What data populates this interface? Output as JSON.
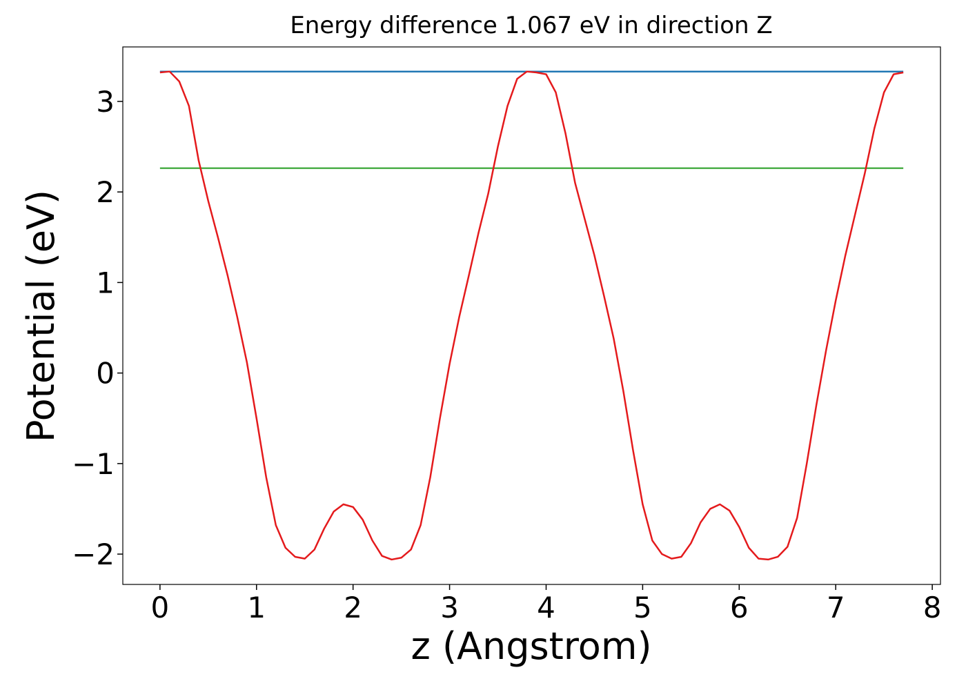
{
  "chart_data": {
    "type": "line",
    "title": "Energy difference 1.067 eV in direction Z",
    "xlabel": "z (Angstrom)",
    "ylabel": "Potential (eV)",
    "xlim": [
      -0.385,
      8.085
    ],
    "ylim": [
      -2.335,
      3.602
    ],
    "xticks": [
      0,
      1,
      2,
      3,
      4,
      5,
      6,
      7,
      8
    ],
    "yticks": [
      {
        "value": -2,
        "label": "−2"
      },
      {
        "value": -1,
        "label": "−1"
      },
      0,
      1,
      2,
      3
    ],
    "grid": false,
    "series": [
      {
        "color": "#1f77b4",
        "x": [
          0,
          7.7
        ],
        "values": [
          3.33,
          3.33
        ]
      },
      {
        "color": "#4daf4a",
        "x": [
          0,
          7.7
        ],
        "values": [
          2.263,
          2.263
        ]
      },
      {
        "color": "#e41a1c",
        "x": [
          0,
          0.1,
          0.2,
          0.3,
          0.4,
          0.5,
          0.6,
          0.7,
          0.8,
          0.9,
          1.0,
          1.1,
          1.2,
          1.3,
          1.4,
          1.5,
          1.6,
          1.7,
          1.8,
          1.9,
          2.0,
          2.1,
          2.2,
          2.3,
          2.4,
          2.5,
          2.6,
          2.7,
          2.8,
          2.9,
          3.0,
          3.1,
          3.2,
          3.3,
          3.4,
          3.5,
          3.6,
          3.7,
          3.8,
          3.9,
          4.0,
          4.1,
          4.2,
          4.3,
          4.4,
          4.5,
          4.6,
          4.7,
          4.8,
          4.9,
          5.0,
          5.1,
          5.2,
          5.3,
          5.4,
          5.5,
          5.6,
          5.7,
          5.8,
          5.9,
          6.0,
          6.1,
          6.2,
          6.3,
          6.4,
          6.5,
          6.6,
          6.7,
          6.8,
          6.9,
          7.0,
          7.1,
          7.2,
          7.3,
          7.4,
          7.5,
          7.6,
          7.7
        ],
        "values": [
          3.32,
          3.33,
          3.22,
          2.95,
          2.35,
          1.9,
          1.5,
          1.08,
          0.62,
          0.12,
          -0.5,
          -1.15,
          -1.68,
          -1.93,
          -2.03,
          -2.05,
          -1.95,
          -1.72,
          -1.53,
          -1.45,
          -1.48,
          -1.62,
          -1.85,
          -2.02,
          -2.06,
          -2.04,
          -1.95,
          -1.68,
          -1.15,
          -0.5,
          0.1,
          0.62,
          1.08,
          1.55,
          1.98,
          2.5,
          2.95,
          3.25,
          3.33,
          3.32,
          3.3,
          3.1,
          2.65,
          2.1,
          1.7,
          1.3,
          0.85,
          0.38,
          -0.2,
          -0.85,
          -1.45,
          -1.85,
          -2.0,
          -2.05,
          -2.03,
          -1.88,
          -1.65,
          -1.5,
          -1.45,
          -1.52,
          -1.7,
          -1.93,
          -2.05,
          -2.06,
          -2.03,
          -1.92,
          -1.6,
          -1.0,
          -0.35,
          0.25,
          0.8,
          1.3,
          1.75,
          2.2,
          2.7,
          3.1,
          3.3,
          3.32
        ]
      }
    ]
  }
}
